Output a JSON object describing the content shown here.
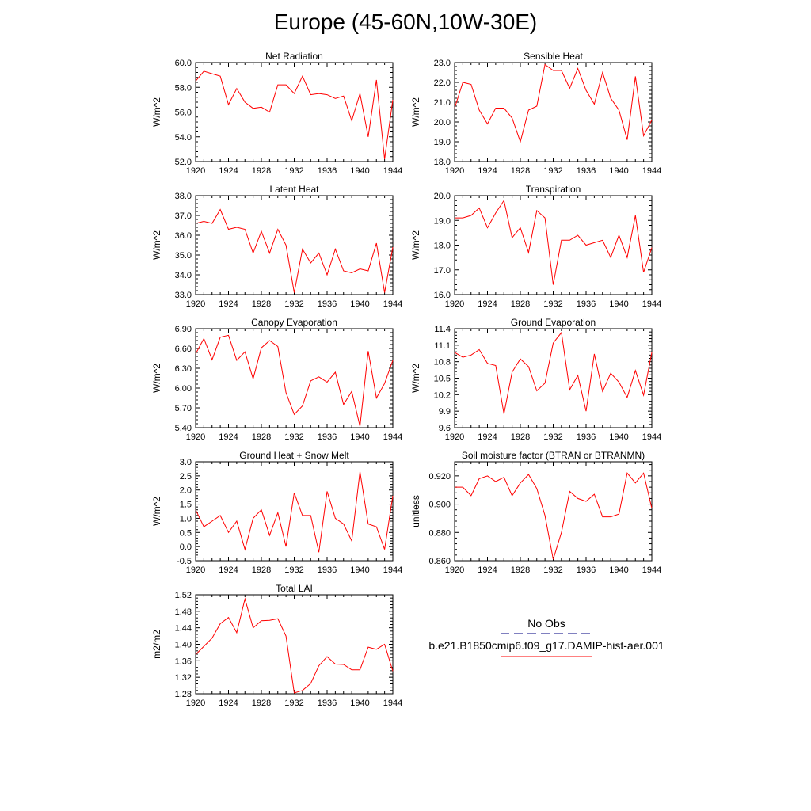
{
  "page_title": "Europe (45-60N,10W-30E)",
  "colors": {
    "model_line": "#ff0000",
    "obs_line": "#000080",
    "axis": "#000000"
  },
  "legend": {
    "obs_label": "No Obs",
    "model_label": "b.e21.B1850cmip6.f09_g17.DAMIP-hist-aer.001"
  },
  "chart_data": [
    {
      "type": "line",
      "title": "Net Radiation",
      "ylabel": "W/m^2",
      "xlim": [
        1920,
        1944
      ],
      "ylim": [
        52.0,
        60.0
      ],
      "x_ticks": [
        1920,
        1924,
        1928,
        1932,
        1936,
        1940,
        1944
      ],
      "y_ticks": [
        52.0,
        54.0,
        56.0,
        58.0,
        60.0
      ],
      "y_tick_labels": [
        "52.0",
        "54.0",
        "56.0",
        "58.0",
        "60.0"
      ],
      "grid": false,
      "series": [
        {
          "x": [
            1920,
            1921,
            1922,
            1923,
            1924,
            1925,
            1926,
            1927,
            1928,
            1929,
            1930,
            1931,
            1932,
            1933,
            1934,
            1935,
            1936,
            1937,
            1938,
            1939,
            1940,
            1941,
            1942,
            1943,
            1944
          ],
          "values": [
            58.5,
            59.3,
            59.1,
            58.9,
            56.6,
            57.9,
            56.8,
            56.3,
            56.4,
            56.0,
            58.2,
            58.2,
            57.5,
            58.9,
            57.4,
            57.5,
            57.4,
            57.1,
            57.3,
            55.3,
            57.5,
            54.0,
            58.6,
            52.2,
            57.0
          ]
        }
      ]
    },
    {
      "type": "line",
      "title": "Sensible Heat",
      "ylabel": "W/m^2",
      "xlim": [
        1920,
        1944
      ],
      "ylim": [
        18.0,
        23.0
      ],
      "x_ticks": [
        1920,
        1924,
        1928,
        1932,
        1936,
        1940,
        1944
      ],
      "y_ticks": [
        18.0,
        19.0,
        20.0,
        21.0,
        22.0,
        23.0
      ],
      "y_tick_labels": [
        "18.0",
        "19.0",
        "20.0",
        "21.0",
        "22.0",
        "23.0"
      ],
      "grid": false,
      "series": [
        {
          "x": [
            1920,
            1921,
            1922,
            1923,
            1924,
            1925,
            1926,
            1927,
            1928,
            1929,
            1930,
            1931,
            1932,
            1933,
            1934,
            1935,
            1936,
            1937,
            1938,
            1939,
            1940,
            1941,
            1942,
            1943,
            1944
          ],
          "values": [
            20.7,
            22.0,
            21.9,
            20.6,
            19.9,
            20.7,
            20.7,
            20.2,
            19.0,
            20.6,
            20.8,
            22.9,
            22.6,
            22.6,
            21.7,
            22.7,
            21.6,
            20.9,
            22.5,
            21.2,
            20.6,
            19.1,
            22.3,
            19.3,
            20.1
          ]
        }
      ]
    },
    {
      "type": "line",
      "title": "Latent Heat",
      "ylabel": "W/m^2",
      "xlim": [
        1920,
        1944
      ],
      "ylim": [
        33.0,
        38.0
      ],
      "x_ticks": [
        1920,
        1924,
        1928,
        1932,
        1936,
        1940,
        1944
      ],
      "y_ticks": [
        33.0,
        34.0,
        35.0,
        36.0,
        37.0,
        38.0
      ],
      "y_tick_labels": [
        "33.0",
        "34.0",
        "35.0",
        "36.0",
        "37.0",
        "38.0"
      ],
      "grid": false,
      "series": [
        {
          "x": [
            1920,
            1921,
            1922,
            1923,
            1924,
            1925,
            1926,
            1927,
            1928,
            1929,
            1930,
            1931,
            1932,
            1933,
            1934,
            1935,
            1936,
            1937,
            1938,
            1939,
            1940,
            1941,
            1942,
            1943,
            1944
          ],
          "values": [
            36.6,
            36.7,
            36.6,
            37.3,
            36.3,
            36.4,
            36.3,
            35.1,
            36.2,
            35.1,
            36.3,
            35.5,
            33.1,
            35.3,
            34.6,
            35.1,
            34.0,
            35.3,
            34.2,
            34.1,
            34.3,
            34.2,
            35.6,
            33.1,
            35.4
          ]
        }
      ]
    },
    {
      "type": "line",
      "title": "Transpiration",
      "ylabel": "W/m^2",
      "xlim": [
        1920,
        1944
      ],
      "ylim": [
        16.0,
        20.0
      ],
      "x_ticks": [
        1920,
        1924,
        1928,
        1932,
        1936,
        1940,
        1944
      ],
      "y_ticks": [
        16.0,
        17.0,
        18.0,
        19.0,
        20.0
      ],
      "y_tick_labels": [
        "16.0",
        "17.0",
        "18.0",
        "19.0",
        "20.0"
      ],
      "grid": false,
      "series": [
        {
          "x": [
            1920,
            1921,
            1922,
            1923,
            1924,
            1925,
            1926,
            1927,
            1928,
            1929,
            1930,
            1931,
            1932,
            1933,
            1934,
            1935,
            1936,
            1937,
            1938,
            1939,
            1940,
            1941,
            1942,
            1943,
            1944
          ],
          "values": [
            19.1,
            19.1,
            19.2,
            19.5,
            18.7,
            19.3,
            19.8,
            18.3,
            18.7,
            17.7,
            19.4,
            19.1,
            16.4,
            18.2,
            18.2,
            18.4,
            18.0,
            18.1,
            18.2,
            17.5,
            18.4,
            17.5,
            19.2,
            16.9,
            17.9
          ]
        }
      ]
    },
    {
      "type": "line",
      "title": "Canopy Evaporation",
      "ylabel": "W/m^2",
      "xlim": [
        1920,
        1944
      ],
      "ylim": [
        5.4,
        6.9
      ],
      "x_ticks": [
        1920,
        1924,
        1928,
        1932,
        1936,
        1940,
        1944
      ],
      "y_ticks": [
        5.4,
        5.7,
        6.0,
        6.3,
        6.6,
        6.9
      ],
      "y_tick_labels": [
        "5.40",
        "5.70",
        "6.00",
        "6.30",
        "6.60",
        "6.90"
      ],
      "grid": false,
      "series": [
        {
          "x": [
            1920,
            1921,
            1922,
            1923,
            1924,
            1925,
            1926,
            1927,
            1928,
            1929,
            1930,
            1931,
            1932,
            1933,
            1934,
            1935,
            1936,
            1937,
            1938,
            1939,
            1940,
            1941,
            1942,
            1943,
            1944
          ],
          "values": [
            6.52,
            6.75,
            6.43,
            6.77,
            6.8,
            6.42,
            6.55,
            6.14,
            6.61,
            6.72,
            6.63,
            5.93,
            5.6,
            5.73,
            6.11,
            6.17,
            6.09,
            6.24,
            5.75,
            5.95,
            5.42,
            6.56,
            5.85,
            6.07,
            6.42
          ]
        }
      ]
    },
    {
      "type": "line",
      "title": "Ground Evaporation",
      "ylabel": "W/m^2",
      "xlim": [
        1920,
        1944
      ],
      "ylim": [
        9.6,
        11.4
      ],
      "x_ticks": [
        1920,
        1924,
        1928,
        1932,
        1936,
        1940,
        1944
      ],
      "y_ticks": [
        9.6,
        9.9,
        10.2,
        10.5,
        10.8,
        11.1,
        11.4
      ],
      "y_tick_labels": [
        "9.6",
        "9.9",
        "10.2",
        "10.5",
        "10.8",
        "11.1",
        "11.4"
      ],
      "grid": false,
      "series": [
        {
          "x": [
            1920,
            1921,
            1922,
            1923,
            1924,
            1925,
            1926,
            1927,
            1928,
            1929,
            1930,
            1931,
            1932,
            1933,
            1934,
            1935,
            1936,
            1937,
            1938,
            1939,
            1940,
            1941,
            1942,
            1943,
            1944
          ],
          "values": [
            10.97,
            10.88,
            10.92,
            11.02,
            10.77,
            10.73,
            9.85,
            10.61,
            10.85,
            10.71,
            10.27,
            10.41,
            11.14,
            11.33,
            10.29,
            10.55,
            9.9,
            10.94,
            10.26,
            10.59,
            10.43,
            10.15,
            10.64,
            10.19,
            10.97
          ]
        }
      ]
    },
    {
      "type": "line",
      "title": "Ground Heat + Snow Melt",
      "ylabel": "W/m^2",
      "xlim": [
        1920,
        1944
      ],
      "ylim": [
        -0.5,
        3.0
      ],
      "x_ticks": [
        1920,
        1924,
        1928,
        1932,
        1936,
        1940,
        1944
      ],
      "y_ticks": [
        -0.5,
        0.0,
        0.5,
        1.0,
        1.5,
        2.0,
        2.5,
        3.0
      ],
      "y_tick_labels": [
        "-0.5",
        "0.0",
        "0.5",
        "1.0",
        "1.5",
        "2.0",
        "2.5",
        "3.0"
      ],
      "grid": false,
      "series": [
        {
          "x": [
            1920,
            1921,
            1922,
            1923,
            1924,
            1925,
            1926,
            1927,
            1928,
            1929,
            1930,
            1931,
            1932,
            1933,
            1934,
            1935,
            1936,
            1937,
            1938,
            1939,
            1940,
            1941,
            1942,
            1943,
            1944
          ],
          "values": [
            1.3,
            0.7,
            0.9,
            1.1,
            0.5,
            0.9,
            -0.1,
            1.0,
            1.3,
            0.4,
            1.2,
            0.0,
            1.9,
            1.1,
            1.1,
            -0.2,
            1.95,
            1.0,
            0.8,
            0.2,
            2.65,
            0.8,
            0.7,
            -0.1,
            1.8
          ]
        }
      ]
    },
    {
      "type": "line",
      "title": "Soil moisture factor (BTRAN or BTRANMN)",
      "ylabel": "unitless",
      "xlim": [
        1920,
        1944
      ],
      "ylim": [
        0.86,
        0.93
      ],
      "x_ticks": [
        1920,
        1924,
        1928,
        1932,
        1936,
        1940,
        1944
      ],
      "y_ticks": [
        0.86,
        0.88,
        0.9,
        0.92
      ],
      "y_tick_labels": [
        "0.860",
        "0.880",
        "0.900",
        "0.920"
      ],
      "grid": false,
      "series": [
        {
          "x": [
            1920,
            1921,
            1922,
            1923,
            1924,
            1925,
            1926,
            1927,
            1928,
            1929,
            1930,
            1931,
            1932,
            1933,
            1934,
            1935,
            1936,
            1937,
            1938,
            1939,
            1940,
            1941,
            1942,
            1943,
            1944
          ],
          "values": [
            0.912,
            0.912,
            0.906,
            0.918,
            0.92,
            0.916,
            0.919,
            0.906,
            0.915,
            0.921,
            0.911,
            0.892,
            0.861,
            0.88,
            0.909,
            0.904,
            0.902,
            0.907,
            0.891,
            0.891,
            0.893,
            0.922,
            0.915,
            0.922,
            0.897
          ]
        }
      ]
    },
    {
      "type": "line",
      "title": "Total LAI",
      "ylabel": "m2/m2",
      "xlim": [
        1920,
        1944
      ],
      "ylim": [
        1.28,
        1.52
      ],
      "x_ticks": [
        1920,
        1924,
        1928,
        1932,
        1936,
        1940,
        1944
      ],
      "y_ticks": [
        1.28,
        1.32,
        1.36,
        1.4,
        1.44,
        1.48,
        1.52
      ],
      "y_tick_labels": [
        "1.28",
        "1.32",
        "1.36",
        "1.40",
        "1.44",
        "1.48",
        "1.52"
      ],
      "grid": false,
      "series": [
        {
          "x": [
            1920,
            1921,
            1922,
            1923,
            1924,
            1925,
            1926,
            1927,
            1928,
            1929,
            1930,
            1931,
            1932,
            1933,
            1934,
            1935,
            1936,
            1937,
            1938,
            1939,
            1940,
            1941,
            1942,
            1943,
            1944
          ],
          "values": [
            1.375,
            1.395,
            1.415,
            1.45,
            1.465,
            1.428,
            1.51,
            1.44,
            1.457,
            1.458,
            1.462,
            1.42,
            1.282,
            1.288,
            1.305,
            1.348,
            1.37,
            1.352,
            1.351,
            1.338,
            1.338,
            1.393,
            1.388,
            1.4,
            1.335
          ]
        }
      ]
    }
  ]
}
